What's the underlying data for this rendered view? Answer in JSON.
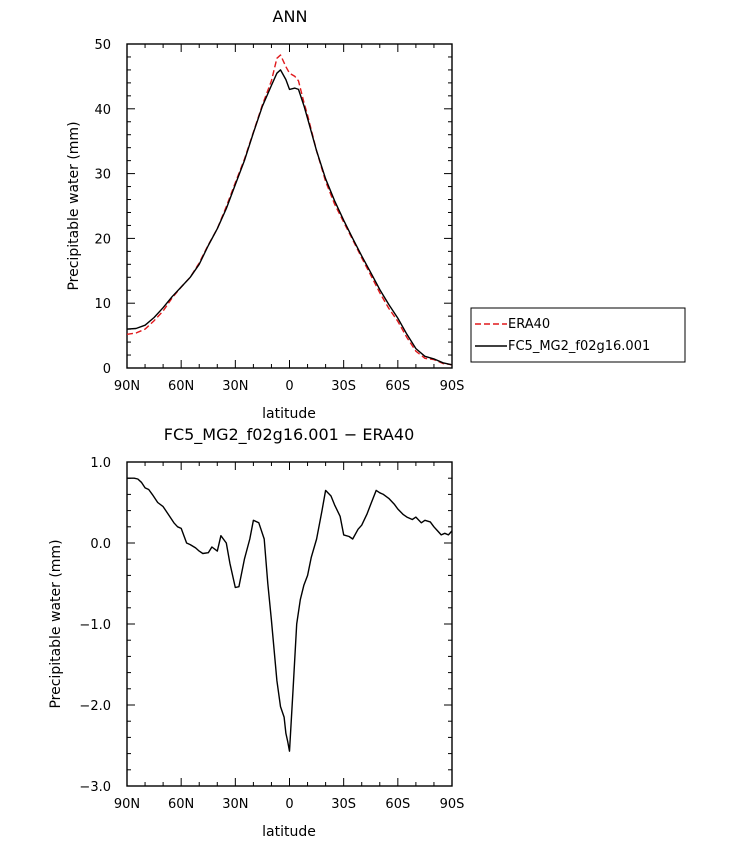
{
  "chart_data": [
    {
      "type": "line",
      "title": "ANN",
      "xlabel": "latitude",
      "ylabel": "Precipitable water (mm)",
      "xlim": [
        90,
        -90
      ],
      "ylim": [
        0,
        50
      ],
      "x_ticks": [
        "90N",
        "60N",
        "30N",
        "0",
        "30S",
        "60S",
        "90S"
      ],
      "y_ticks": [
        "0",
        "10",
        "20",
        "30",
        "40",
        "50"
      ],
      "grid": false,
      "legend_position": "outside-right-bottom",
      "series": [
        {
          "name": "ERA40",
          "color": "#e0191c",
          "dash": true,
          "x": [
            90,
            85,
            80,
            75,
            70,
            65,
            60,
            55,
            50,
            45,
            40,
            35,
            30,
            25,
            20,
            15,
            10,
            7,
            5,
            2,
            0,
            -3,
            -5,
            -8,
            -10,
            -15,
            -20,
            -25,
            -30,
            -35,
            -40,
            -45,
            -50,
            -55,
            -60,
            -65,
            -70,
            -75,
            -80,
            -85,
            -90
          ],
          "y": [
            5.2,
            5.4,
            6.0,
            7.3,
            8.8,
            10.8,
            12.5,
            14.0,
            16.2,
            19.0,
            21.5,
            24.9,
            28.6,
            32.2,
            36.4,
            40.6,
            44.3,
            47.8,
            48.3,
            46.5,
            45.5,
            45.0,
            44.3,
            41.0,
            39.0,
            33.5,
            28.8,
            25.3,
            22.5,
            19.8,
            17.0,
            14.3,
            11.6,
            9.2,
            7.2,
            4.7,
            2.6,
            1.5,
            1.3,
            0.7,
            0.5
          ]
        },
        {
          "name": "FC5_MG2_f02g16.001",
          "color": "#000000",
          "dash": false,
          "x": [
            90,
            85,
            80,
            75,
            70,
            65,
            60,
            55,
            50,
            45,
            40,
            35,
            30,
            25,
            20,
            15,
            10,
            7,
            5,
            2,
            0,
            -3,
            -5,
            -8,
            -10,
            -15,
            -20,
            -25,
            -30,
            -35,
            -40,
            -45,
            -50,
            -55,
            -60,
            -65,
            -70,
            -75,
            -80,
            -85,
            -90
          ],
          "y": [
            6.0,
            6.1,
            6.6,
            7.8,
            9.3,
            11.0,
            12.5,
            14.0,
            16.0,
            18.9,
            21.5,
            24.6,
            28.3,
            32.0,
            36.3,
            40.4,
            43.6,
            45.5,
            46.0,
            44.5,
            43.0,
            43.2,
            43.0,
            40.5,
            38.5,
            33.5,
            29.2,
            25.8,
            22.8,
            20.0,
            17.3,
            14.7,
            12.1,
            9.8,
            7.7,
            5.2,
            3.0,
            1.8,
            1.4,
            0.8,
            0.5
          ]
        }
      ]
    },
    {
      "type": "line",
      "title": "FC5_MG2_f02g16.001 − ERA40",
      "xlabel": "latitude",
      "ylabel": "Precipitable water (mm)",
      "xlim": [
        90,
        -90
      ],
      "ylim": [
        -3.0,
        1.0
      ],
      "x_ticks": [
        "90N",
        "60N",
        "30N",
        "0",
        "30S",
        "60S",
        "90S"
      ],
      "y_ticks": [
        "−3.0",
        "−2.0",
        "−1.0",
        "0.0",
        "1.0"
      ],
      "grid": false,
      "series": [
        {
          "color": "#000000",
          "dash": false,
          "x": [
            90,
            86,
            84,
            82,
            80,
            78,
            76,
            73,
            70,
            67,
            64,
            62,
            60,
            57,
            55,
            52,
            50,
            48,
            45,
            43,
            40,
            38,
            35,
            33,
            30,
            28,
            25,
            22,
            20,
            17,
            14,
            12,
            10,
            7,
            5,
            3,
            2,
            1,
            0,
            -2,
            -4,
            -6,
            -8,
            -10,
            -12,
            -15,
            -18,
            -20,
            -23,
            -25,
            -28,
            -30,
            -33,
            -35,
            -38,
            -40,
            -43,
            -45,
            -48,
            -50,
            -52,
            -55,
            -58,
            -60,
            -63,
            -65,
            -68,
            -70,
            -73,
            -75,
            -78,
            -80,
            -82,
            -84,
            -86,
            -88,
            -90
          ],
          "y": [
            0.8,
            0.8,
            0.79,
            0.75,
            0.68,
            0.66,
            0.6,
            0.5,
            0.45,
            0.35,
            0.25,
            0.2,
            0.18,
            0.0,
            -0.02,
            -0.06,
            -0.1,
            -0.13,
            -0.12,
            -0.05,
            -0.1,
            0.09,
            0.0,
            -0.25,
            -0.55,
            -0.54,
            -0.2,
            0.05,
            0.28,
            0.25,
            0.05,
            -0.5,
            -0.95,
            -1.7,
            -2.02,
            -2.15,
            -2.35,
            -2.45,
            -2.57,
            -1.8,
            -1.0,
            -0.7,
            -0.52,
            -0.4,
            -0.18,
            0.05,
            0.4,
            0.65,
            0.58,
            0.47,
            0.33,
            0.1,
            0.08,
            0.05,
            0.17,
            0.22,
            0.36,
            0.48,
            0.65,
            0.62,
            0.6,
            0.55,
            0.48,
            0.42,
            0.35,
            0.32,
            0.29,
            0.32,
            0.25,
            0.28,
            0.26,
            0.2,
            0.15,
            0.1,
            0.12,
            0.1,
            0.15
          ]
        }
      ]
    }
  ]
}
